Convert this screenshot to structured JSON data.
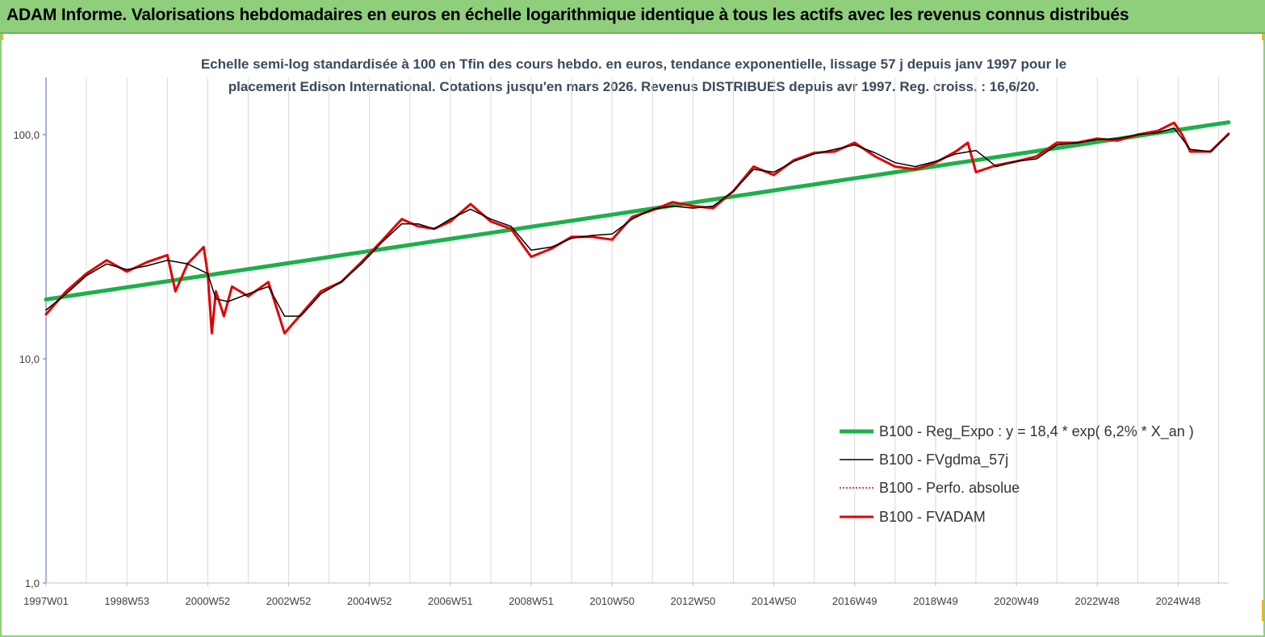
{
  "header": {
    "title": "ADAM Informe. Valorisations hebdomadaires en euros en échelle logarithmique identique à tous les actifs avec les revenus connus distribués"
  },
  "colors": {
    "banner": "#8fcf7c",
    "reg_expo": "#1db04a",
    "fvgdma": "#000000",
    "perfo": "#e00000",
    "fvadam": "#e00000",
    "grid": "#d9d9d9",
    "axis": "#4472c4"
  },
  "chart_data": {
    "type": "line",
    "title_line1": "Echelle semi-log standardisée à 100 en Tfin des cours hebdo. en euros, tendance exponentielle, lissage 57 j depuis janv 1997 pour le",
    "title_line2": "placement Edison International. Cotations jusqu'en mars 2026. Revenus DISTRIBUES depuis avr 1997. Reg. croiss. : 16,6/20.",
    "y_scale": "log",
    "ylim": [
      1,
      180
    ],
    "xlim": [
      1997.0,
      2026.25
    ],
    "y_ticks": [
      {
        "value": 1,
        "label": "1,0"
      },
      {
        "value": 10,
        "label": "10,0"
      },
      {
        "value": 100,
        "label": "100,0"
      }
    ],
    "x_ticks": [
      {
        "value": 1997.0,
        "label": "1997W01"
      },
      {
        "value": 1999.0,
        "label": "1998W53"
      },
      {
        "value": 2001.0,
        "label": "2000W52"
      },
      {
        "value": 2003.0,
        "label": "2002W52"
      },
      {
        "value": 2005.0,
        "label": "2004W52"
      },
      {
        "value": 2007.0,
        "label": "2006W51"
      },
      {
        "value": 2009.0,
        "label": "2008W51"
      },
      {
        "value": 2011.0,
        "label": "2010W50"
      },
      {
        "value": 2013.0,
        "label": "2012W50"
      },
      {
        "value": 2015.0,
        "label": "2014W50"
      },
      {
        "value": 2017.0,
        "label": "2016W49"
      },
      {
        "value": 2019.0,
        "label": "2018W49"
      },
      {
        "value": 2021.0,
        "label": "2020W49"
      },
      {
        "value": 2023.0,
        "label": "2022W48"
      },
      {
        "value": 2025.0,
        "label": "2024W48"
      }
    ],
    "grid": "vertical",
    "legend_position": "bottom-right",
    "series": [
      {
        "name": "B100 - Reg_Expo : y = 18,4 * exp( 6,2% * X_an )",
        "key": "reg_expo",
        "x": [
          1997.0,
          2026.25
        ],
        "y": [
          18.4,
          113.5
        ]
      },
      {
        "name": "B100 - FVgdma_57j",
        "key": "fvgdma",
        "x": [
          1997.0,
          1997.5,
          1998.0,
          1998.5,
          1999.0,
          1999.5,
          2000.0,
          2000.5,
          2001.0,
          2001.2,
          2001.5,
          2002.0,
          2002.5,
          2002.9,
          2003.3,
          2003.8,
          2004.3,
          2004.8,
          2005.3,
          2005.8,
          2006.2,
          2006.6,
          2007.0,
          2007.5,
          2008.0,
          2008.5,
          2009.0,
          2009.5,
          2010.0,
          2010.5,
          2011.0,
          2011.5,
          2012.0,
          2012.5,
          2013.0,
          2013.5,
          2014.0,
          2014.5,
          2015.0,
          2015.5,
          2016.0,
          2016.5,
          2017.0,
          2017.5,
          2018.0,
          2018.5,
          2019.0,
          2019.5,
          2020.0,
          2020.5,
          2021.0,
          2021.5,
          2022.0,
          2022.5,
          2023.0,
          2023.5,
          2024.0,
          2024.5,
          2024.9,
          2025.3,
          2025.8,
          2026.25
        ],
        "y": [
          16.5,
          19.5,
          23.5,
          26.5,
          25.0,
          26.0,
          27.5,
          26.5,
          24.0,
          18.5,
          18.0,
          19.5,
          21.0,
          15.5,
          15.5,
          19.5,
          22.0,
          26.5,
          33.0,
          40.0,
          40.0,
          38.0,
          42.0,
          46.5,
          42.0,
          39.0,
          30.5,
          31.5,
          34.5,
          35.5,
          36.0,
          42.0,
          46.5,
          48.0,
          47.0,
          48.0,
          56.0,
          70.0,
          68.0,
          76.0,
          82.0,
          86.0,
          90.0,
          83.0,
          75.0,
          72.0,
          76.0,
          82.0,
          85.0,
          72.0,
          76.0,
          78.0,
          90.0,
          92.0,
          95.0,
          96.0,
          100.0,
          102.0,
          107.0,
          86.0,
          84.0,
          100.0
        ]
      },
      {
        "name": "B100 - Perfo. absolue",
        "key": "perfo",
        "x": [],
        "y": []
      },
      {
        "name": "B100 - FVADAM",
        "key": "fvadam",
        "x": [
          1997.0,
          1997.5,
          1998.0,
          1998.5,
          1999.0,
          1999.5,
          2000.0,
          2000.2,
          2000.5,
          2000.9,
          2001.0,
          2001.1,
          2001.2,
          2001.4,
          2001.6,
          2002.0,
          2002.5,
          2002.9,
          2003.2,
          2003.8,
          2004.3,
          2004.8,
          2005.3,
          2005.8,
          2006.2,
          2006.6,
          2007.0,
          2007.5,
          2008.0,
          2008.5,
          2009.0,
          2009.5,
          2010.0,
          2010.5,
          2011.0,
          2011.5,
          2012.0,
          2012.5,
          2013.0,
          2013.5,
          2014.0,
          2014.5,
          2015.0,
          2015.5,
          2016.0,
          2016.5,
          2017.0,
          2017.5,
          2018.0,
          2018.5,
          2019.0,
          2019.5,
          2019.8,
          2020.0,
          2020.5,
          2021.0,
          2021.5,
          2022.0,
          2022.5,
          2023.0,
          2023.5,
          2024.0,
          2024.5,
          2024.9,
          2025.1,
          2025.3,
          2025.8,
          2026.25
        ],
        "y": [
          15.8,
          20.0,
          24.0,
          27.5,
          24.5,
          27.0,
          29.0,
          20.0,
          26.5,
          31.5,
          24.0,
          13.0,
          20.0,
          15.5,
          21.0,
          19.0,
          22.0,
          13.0,
          15.0,
          20.0,
          22.0,
          27.0,
          33.5,
          42.0,
          39.0,
          38.0,
          41.0,
          49.0,
          41.0,
          38.0,
          28.5,
          31.0,
          35.0,
          35.0,
          34.0,
          43.0,
          46.0,
          50.0,
          48.0,
          47.0,
          56.0,
          72.0,
          66.0,
          77.0,
          83.0,
          84.0,
          92.0,
          80.0,
          72.0,
          70.0,
          75.0,
          84.0,
          92.0,
          68.0,
          73.0,
          76.0,
          80.0,
          92.0,
          92.0,
          96.0,
          94.0,
          100.0,
          104.0,
          113.0,
          100.0,
          84.0,
          84.0,
          101.0
        ]
      }
    ]
  }
}
